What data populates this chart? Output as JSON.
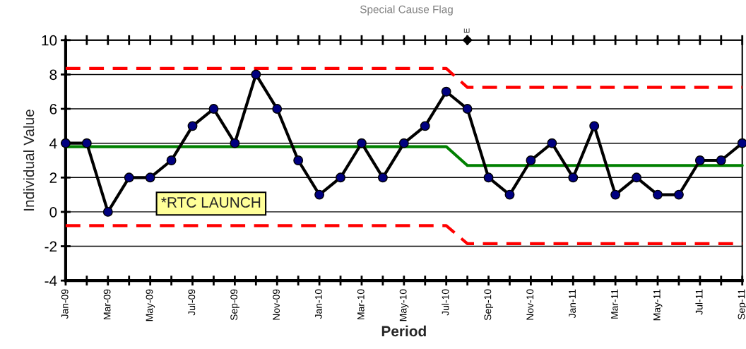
{
  "chart_data": {
    "type": "line",
    "title": "Special Cause Flag",
    "xlabel": "Period",
    "ylabel": "Individual Value",
    "categories": [
      "Jan-09",
      null,
      "Mar-09",
      null,
      "May-09",
      null,
      "Jul-09",
      null,
      "Sep-09",
      null,
      "Nov-09",
      null,
      "Jan-10",
      null,
      "Mar-10",
      null,
      "May-10",
      null,
      "Jul-10",
      null,
      "Sep-10",
      null,
      "Nov-10",
      null,
      "Jan-11",
      null,
      "Mar-11",
      null,
      "May-11",
      null,
      "Jul-11",
      null,
      "Sep-11"
    ],
    "series": [
      {
        "color": "#ff0000",
        "line_style": "dashed",
        "marker": "none",
        "values": [
          8.35,
          8.35,
          8.35,
          8.35,
          8.35,
          8.35,
          8.35,
          8.35,
          8.35,
          8.35,
          8.35,
          8.35,
          8.35,
          8.35,
          8.35,
          8.35,
          8.35,
          8.35,
          8.35,
          7.25,
          7.25,
          7.25,
          7.25,
          7.25,
          7.25,
          7.25,
          7.25,
          7.25,
          7.25,
          7.25,
          7.25,
          7.25,
          7.25
        ]
      },
      {
        "color": "#008000",
        "line_style": "solid",
        "marker": "none",
        "values": [
          3.8,
          3.8,
          3.8,
          3.8,
          3.8,
          3.8,
          3.8,
          3.8,
          3.8,
          3.8,
          3.8,
          3.8,
          3.8,
          3.8,
          3.8,
          3.8,
          3.8,
          3.8,
          3.8,
          2.7,
          2.7,
          2.7,
          2.7,
          2.7,
          2.7,
          2.7,
          2.7,
          2.7,
          2.7,
          2.7,
          2.7,
          2.7,
          2.7
        ]
      },
      {
        "color": "#ff0000",
        "line_style": "dashed",
        "marker": "none",
        "values": [
          -0.8,
          -0.8,
          -0.8,
          -0.8,
          -0.8,
          -0.8,
          -0.8,
          -0.8,
          -0.8,
          -0.8,
          -0.8,
          -0.8,
          -0.8,
          -0.8,
          -0.8,
          -0.8,
          -0.8,
          -0.8,
          -0.8,
          -1.85,
          -1.85,
          -1.85,
          -1.85,
          -1.85,
          -1.85,
          -1.85,
          -1.85,
          -1.85,
          -1.85,
          -1.85,
          -1.85,
          -1.85,
          -1.85
        ]
      },
      {
        "color": "#000080",
        "line_style": "solid",
        "marker": "circle",
        "values": [
          4,
          4,
          0,
          2,
          2,
          3,
          5,
          6,
          4,
          8,
          6,
          3,
          1,
          2,
          4,
          2,
          4,
          5,
          7,
          6,
          2,
          1,
          3,
          4,
          2,
          5,
          1,
          2,
          1,
          1,
          3,
          3,
          4
        ]
      },
      {
        "type": "scatter",
        "color": "#000000",
        "marker": "diamond",
        "values": [
          null,
          null,
          null,
          null,
          null,
          null,
          null,
          null,
          null,
          null,
          null,
          null,
          null,
          null,
          null,
          null,
          null,
          null,
          null,
          10,
          null,
          null,
          null,
          null,
          null,
          null,
          null,
          null,
          null,
          null,
          null,
          null,
          null
        ],
        "value_labels": [
          null,
          null,
          null,
          null,
          null,
          null,
          null,
          null,
          null,
          null,
          null,
          null,
          null,
          null,
          null,
          null,
          null,
          null,
          null,
          "E",
          null,
          null,
          null,
          null,
          null,
          null,
          null,
          null,
          null,
          null,
          null,
          null,
          null
        ]
      }
    ],
    "annotations": [
      "*RTC LAUNCH"
    ],
    "ylim": [
      -4,
      10
    ],
    "yticks": [
      -4,
      -2,
      0,
      2,
      4,
      6,
      8,
      10
    ],
    "grid": "y",
    "legend": false
  }
}
